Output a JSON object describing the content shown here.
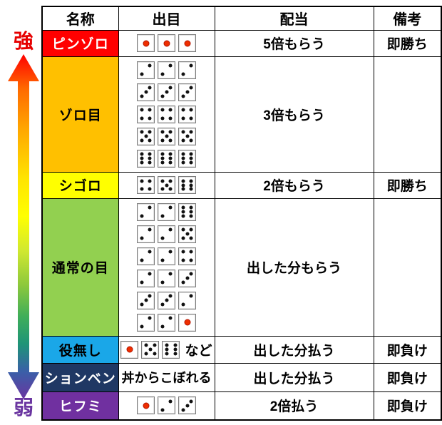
{
  "page": {
    "background": "#ffffff"
  },
  "strength_axis": {
    "strong_label": "強",
    "weak_label": "弱",
    "strong_color": "#e60000",
    "weak_color": "#6a35a0",
    "gradient": [
      "#ff0000",
      "#ff6a00",
      "#ffa800",
      "#ffe400",
      "#ffff00",
      "#d0e830",
      "#8cc83c",
      "#3fae5a",
      "#1e9478",
      "#3a5fa8",
      "#6a35a0"
    ]
  },
  "table": {
    "headers": [
      "名称",
      "出目",
      "配当",
      "備考"
    ],
    "rows": [
      {
        "id": "pinzoro",
        "name": "ピンゾロ",
        "name_bg": "#ff0000",
        "name_color": "#ffffff",
        "dice_rows": [
          [
            1,
            1,
            1
          ]
        ],
        "payout": "5倍もらう",
        "note": "即勝ち"
      },
      {
        "id": "zorome",
        "name": "ゾロ目",
        "name_bg": "#ffc000",
        "name_color": "#000000",
        "dice_rows": [
          [
            2,
            2,
            2
          ],
          [
            3,
            3,
            3
          ],
          [
            4,
            4,
            4
          ],
          [
            5,
            5,
            5
          ],
          [
            6,
            6,
            6
          ]
        ],
        "payout": "3倍もらう",
        "note": ""
      },
      {
        "id": "shigoro",
        "name": "シゴロ",
        "name_bg": "#ffff00",
        "name_color": "#000000",
        "dice_rows": [
          [
            4,
            5,
            6
          ]
        ],
        "payout": "2倍もらう",
        "note": "即勝ち"
      },
      {
        "id": "tsujo-no-me",
        "name": "通常の目",
        "name_bg": "#92d050",
        "name_color": "#000000",
        "dice_rows": [
          [
            2,
            2,
            6
          ],
          [
            2,
            2,
            5
          ],
          [
            2,
            2,
            4
          ],
          [
            2,
            2,
            3
          ],
          [
            3,
            3,
            2
          ],
          [
            2,
            2,
            1
          ]
        ],
        "payout": "出した分もらう",
        "note": ""
      },
      {
        "id": "yakunashi",
        "name": "役無し",
        "name_bg": "#1aa7e8",
        "name_color": "#000000",
        "dice_rows": [
          [
            1,
            5,
            6
          ]
        ],
        "dice_suffix": "など",
        "payout": "出した分払う",
        "note": "即負け"
      },
      {
        "id": "shonben",
        "name": "ションベン",
        "name_bg": "#1f3864",
        "name_color": "#ffffff",
        "dice_text": "丼からこぼれる",
        "payout": "出した分払う",
        "note": "即負け"
      },
      {
        "id": "hifumi",
        "name": "ヒフミ",
        "name_bg": "#7030a0",
        "name_color": "#ffffff",
        "dice_rows": [
          [
            1,
            2,
            3
          ]
        ],
        "payout": "2倍払う",
        "note": "即負け"
      }
    ]
  },
  "dice_style": {
    "pip_color": "#111111",
    "pip_one_color": "#ee2e00",
    "die_border_color": "#7a7a7a"
  }
}
